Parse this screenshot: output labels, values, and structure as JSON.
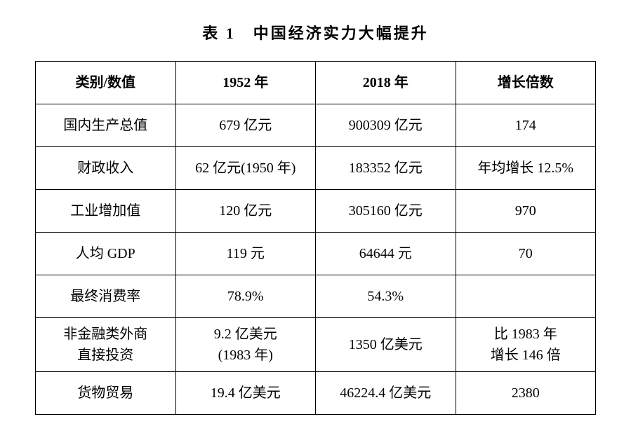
{
  "title": "表 1　中国经济实力大幅提升",
  "table": {
    "columns": [
      "类别/数值",
      "1952 年",
      "2018 年",
      "增长倍数"
    ],
    "rows": [
      {
        "c0": "国内生产总值",
        "c1": "679 亿元",
        "c2": "900309 亿元",
        "c3": "174"
      },
      {
        "c0": "财政收入",
        "c1": "62 亿元(1950 年)",
        "c2": "183352 亿元",
        "c3": "年均增长 12.5%"
      },
      {
        "c0": "工业增加值",
        "c1": "120 亿元",
        "c2": "305160 亿元",
        "c3": "970"
      },
      {
        "c0": "人均 GDP",
        "c1": "119 元",
        "c2": "64644 元",
        "c3": "70"
      },
      {
        "c0": "最终消费率",
        "c1": "78.9%",
        "c2": "54.3%",
        "c3": ""
      },
      {
        "c0_line1": "非金融类外商",
        "c0_line2": "直接投资",
        "c1_line1": "9.2 亿美元",
        "c1_line2": "(1983 年)",
        "c2": "1350 亿美元",
        "c3_line1": "比 1983 年",
        "c3_line2": "增长 146 倍"
      },
      {
        "c0": "货物贸易",
        "c1": "19.4 亿美元",
        "c2": "46224.4 亿美元",
        "c3": "2380"
      }
    ],
    "styling": {
      "border_color": "#000000",
      "background_color": "#ffffff",
      "text_color": "#000000",
      "header_fontweight": "bold",
      "cell_fontsize": 20,
      "title_fontsize": 22,
      "column_widths_pct": [
        25,
        25,
        25,
        25
      ]
    }
  }
}
